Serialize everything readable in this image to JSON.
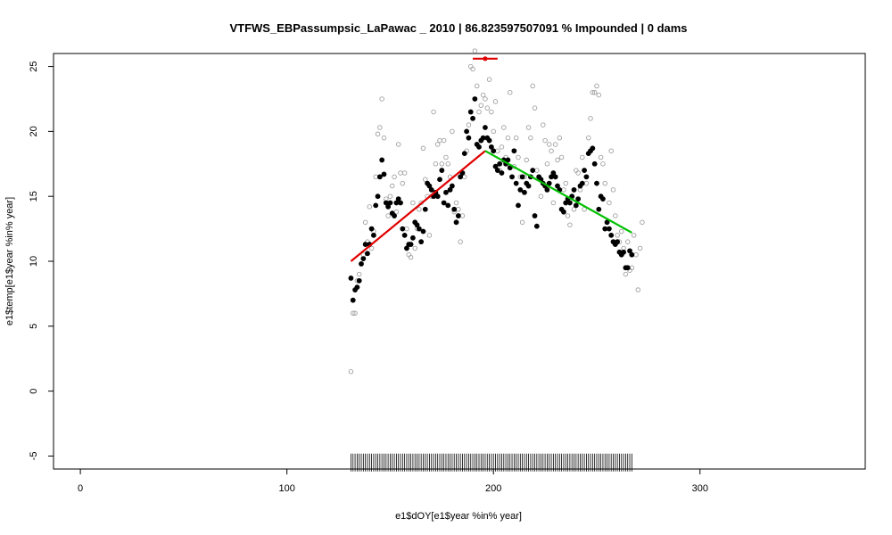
{
  "chart_data": {
    "type": "scatter",
    "title": "VTFWS_EBPassumpsic_LaPawac _ 2010   |   86.823597507091  % Impounded |  0  dams",
    "xlabel": "e1$dOY[e1$year %in% year]",
    "ylabel": "e1$temp[e1$year %in% year]",
    "xlim": [
      -13,
      380
    ],
    "ylim": [
      -6,
      26
    ],
    "xticks": [
      0,
      100,
      200,
      300
    ],
    "yticks": [
      -5,
      0,
      5,
      10,
      15,
      20,
      25
    ],
    "grid": false,
    "series": [
      {
        "style": "open-gray-circles",
        "color": "#a0a0a0",
        "points": [
          [
            131,
            1.5
          ],
          [
            132,
            6.0
          ],
          [
            133,
            6.0
          ],
          [
            134,
            8.5
          ],
          [
            135,
            9.0
          ],
          [
            136,
            9.8
          ],
          [
            137,
            10.5
          ],
          [
            138,
            13.0
          ],
          [
            139,
            11.5
          ],
          [
            140,
            14.2
          ],
          [
            141,
            11.0
          ],
          [
            142,
            12.3
          ],
          [
            143,
            16.5
          ],
          [
            144,
            19.8
          ],
          [
            145,
            20.3
          ],
          [
            146,
            22.5
          ],
          [
            147,
            19.5
          ],
          [
            148,
            14.8
          ],
          [
            149,
            13.5
          ],
          [
            150,
            15.0
          ],
          [
            151,
            15.8
          ],
          [
            152,
            16.5
          ],
          [
            153,
            13.8
          ],
          [
            154,
            19.0
          ],
          [
            155,
            16.8
          ],
          [
            156,
            16.0
          ],
          [
            157,
            16.8
          ],
          [
            158,
            12.5
          ],
          [
            159,
            10.5
          ],
          [
            160,
            10.3
          ],
          [
            161,
            14.5
          ],
          [
            162,
            11.0
          ],
          [
            163,
            12.5
          ],
          [
            164,
            14.0
          ],
          [
            165,
            14.5
          ],
          [
            166,
            18.7
          ],
          [
            167,
            16.3
          ],
          [
            168,
            15.0
          ],
          [
            169,
            12.0
          ],
          [
            170,
            15.0
          ],
          [
            171,
            21.5
          ],
          [
            172,
            17.5
          ],
          [
            173,
            19.0
          ],
          [
            174,
            19.3
          ],
          [
            175,
            17.5
          ],
          [
            176,
            19.3
          ],
          [
            177,
            18.0
          ],
          [
            178,
            17.5
          ],
          [
            179,
            16.5
          ],
          [
            180,
            20.0
          ],
          [
            181,
            13.8
          ],
          [
            182,
            14.5
          ],
          [
            183,
            14.0
          ],
          [
            184,
            11.5
          ],
          [
            185,
            13.5
          ],
          [
            186,
            16.5
          ],
          [
            187,
            18.5
          ],
          [
            188,
            20.5
          ],
          [
            189,
            25.0
          ],
          [
            190,
            24.8
          ],
          [
            191,
            26.2
          ],
          [
            192,
            23.5
          ],
          [
            193,
            21.5
          ],
          [
            194,
            22.0
          ],
          [
            195,
            22.8
          ],
          [
            196,
            22.5
          ],
          [
            197,
            21.8
          ],
          [
            198,
            24.0
          ],
          [
            199,
            21.5
          ],
          [
            200,
            20.0
          ],
          [
            201,
            22.3
          ],
          [
            202,
            18.5
          ],
          [
            203,
            17.0
          ],
          [
            204,
            18.8
          ],
          [
            205,
            20.3
          ],
          [
            206,
            18.0
          ],
          [
            207,
            19.5
          ],
          [
            208,
            23.0
          ],
          [
            209,
            16.5
          ],
          [
            210,
            17.3
          ],
          [
            211,
            19.5
          ],
          [
            212,
            18.0
          ],
          [
            213,
            16.5
          ],
          [
            214,
            13.0
          ],
          [
            215,
            16.5
          ],
          [
            216,
            17.8
          ],
          [
            217,
            20.3
          ],
          [
            218,
            19.5
          ],
          [
            219,
            23.5
          ],
          [
            220,
            21.8
          ],
          [
            221,
            17.0
          ],
          [
            222,
            16.5
          ],
          [
            223,
            15.0
          ],
          [
            224,
            20.5
          ],
          [
            225,
            19.3
          ],
          [
            226,
            17.5
          ],
          [
            227,
            19.0
          ],
          [
            228,
            18.5
          ],
          [
            229,
            14.5
          ],
          [
            230,
            19.0
          ],
          [
            231,
            17.8
          ],
          [
            232,
            19.5
          ],
          [
            233,
            18.0
          ],
          [
            234,
            15.5
          ],
          [
            235,
            16.0
          ],
          [
            236,
            13.5
          ],
          [
            237,
            12.8
          ],
          [
            238,
            15.0
          ],
          [
            239,
            14.0
          ],
          [
            240,
            17.0
          ],
          [
            241,
            16.8
          ],
          [
            242,
            15.5
          ],
          [
            243,
            18.0
          ],
          [
            244,
            14.0
          ],
          [
            245,
            16.0
          ],
          [
            246,
            19.5
          ],
          [
            247,
            21.0
          ],
          [
            248,
            23.0
          ],
          [
            249,
            23.0
          ],
          [
            250,
            23.5
          ],
          [
            251,
            22.8
          ],
          [
            252,
            18.0
          ],
          [
            253,
            17.5
          ],
          [
            254,
            16.0
          ],
          [
            255,
            13.0
          ],
          [
            256,
            14.5
          ],
          [
            257,
            18.5
          ],
          [
            258,
            15.5
          ],
          [
            259,
            13.5
          ],
          [
            260,
            12.0
          ],
          [
            261,
            11.5
          ],
          [
            262,
            12.3
          ],
          [
            263,
            11.0
          ],
          [
            264,
            9.0
          ],
          [
            265,
            11.5
          ],
          [
            266,
            9.3
          ],
          [
            267,
            9.5
          ],
          [
            268,
            12.0
          ],
          [
            269,
            10.5
          ],
          [
            270,
            7.8
          ],
          [
            271,
            11.0
          ],
          [
            272,
            13.0
          ]
        ]
      },
      {
        "style": "filled-black-circles",
        "color": "#000000",
        "points": [
          [
            131,
            8.7
          ],
          [
            132,
            7.0
          ],
          [
            133,
            7.8
          ],
          [
            134,
            8.0
          ],
          [
            135,
            8.5
          ],
          [
            136,
            9.8
          ],
          [
            137,
            10.2
          ],
          [
            138,
            11.3
          ],
          [
            139,
            10.6
          ],
          [
            140,
            11.3
          ],
          [
            141,
            12.5
          ],
          [
            142,
            12.0
          ],
          [
            143,
            14.3
          ],
          [
            144,
            15.0
          ],
          [
            145,
            16.5
          ],
          [
            146,
            17.8
          ],
          [
            147,
            16.7
          ],
          [
            148,
            14.5
          ],
          [
            149,
            14.2
          ],
          [
            150,
            14.5
          ],
          [
            151,
            13.7
          ],
          [
            152,
            13.5
          ],
          [
            153,
            14.5
          ],
          [
            154,
            14.8
          ],
          [
            155,
            14.5
          ],
          [
            156,
            12.5
          ],
          [
            157,
            12.0
          ],
          [
            158,
            11.0
          ],
          [
            159,
            11.3
          ],
          [
            160,
            11.3
          ],
          [
            161,
            11.8
          ],
          [
            162,
            13.0
          ],
          [
            163,
            12.8
          ],
          [
            164,
            12.5
          ],
          [
            165,
            11.5
          ],
          [
            166,
            12.3
          ],
          [
            167,
            14.0
          ],
          [
            168,
            16.0
          ],
          [
            169,
            15.8
          ],
          [
            170,
            15.5
          ],
          [
            171,
            15.0
          ],
          [
            172,
            15.3
          ],
          [
            173,
            15.0
          ],
          [
            174,
            16.3
          ],
          [
            175,
            17.0
          ],
          [
            176,
            14.5
          ],
          [
            177,
            15.3
          ],
          [
            178,
            14.3
          ],
          [
            179,
            15.5
          ],
          [
            180,
            15.8
          ],
          [
            181,
            14.0
          ],
          [
            182,
            13.0
          ],
          [
            183,
            13.5
          ],
          [
            184,
            16.5
          ],
          [
            185,
            16.8
          ],
          [
            186,
            18.3
          ],
          [
            187,
            20.0
          ],
          [
            188,
            19.5
          ],
          [
            189,
            21.5
          ],
          [
            190,
            21.0
          ],
          [
            191,
            22.5
          ],
          [
            192,
            19.0
          ],
          [
            193,
            18.8
          ],
          [
            194,
            19.3
          ],
          [
            195,
            19.5
          ],
          [
            196,
            20.3
          ],
          [
            197,
            19.5
          ],
          [
            198,
            19.3
          ],
          [
            199,
            18.8
          ],
          [
            200,
            18.5
          ],
          [
            201,
            17.3
          ],
          [
            202,
            17.0
          ],
          [
            203,
            17.5
          ],
          [
            204,
            16.8
          ],
          [
            205,
            17.8
          ],
          [
            206,
            17.5
          ],
          [
            207,
            17.8
          ],
          [
            208,
            17.2
          ],
          [
            209,
            16.5
          ],
          [
            210,
            18.5
          ],
          [
            211,
            16.0
          ],
          [
            212,
            14.3
          ],
          [
            213,
            15.5
          ],
          [
            214,
            16.5
          ],
          [
            215,
            15.3
          ],
          [
            216,
            16.0
          ],
          [
            217,
            15.8
          ],
          [
            218,
            16.5
          ],
          [
            219,
            17.0
          ],
          [
            220,
            13.5
          ],
          [
            221,
            12.7
          ],
          [
            222,
            16.5
          ],
          [
            223,
            16.3
          ],
          [
            224,
            16.0
          ],
          [
            225,
            15.8
          ],
          [
            226,
            15.5
          ],
          [
            227,
            16.0
          ],
          [
            228,
            16.5
          ],
          [
            229,
            16.8
          ],
          [
            230,
            16.5
          ],
          [
            231,
            15.8
          ],
          [
            232,
            15.5
          ],
          [
            233,
            14.0
          ],
          [
            234,
            13.8
          ],
          [
            235,
            14.5
          ],
          [
            236,
            14.8
          ],
          [
            237,
            14.5
          ],
          [
            238,
            15.0
          ],
          [
            239,
            15.5
          ],
          [
            240,
            14.3
          ],
          [
            241,
            14.8
          ],
          [
            242,
            15.8
          ],
          [
            243,
            16.0
          ],
          [
            244,
            17.0
          ],
          [
            245,
            16.5
          ],
          [
            246,
            18.3
          ],
          [
            247,
            18.5
          ],
          [
            248,
            18.7
          ],
          [
            249,
            17.5
          ],
          [
            250,
            16.0
          ],
          [
            251,
            14.0
          ],
          [
            252,
            15.0
          ],
          [
            253,
            14.8
          ],
          [
            254,
            12.5
          ],
          [
            255,
            13.0
          ],
          [
            256,
            12.5
          ],
          [
            257,
            12.0
          ],
          [
            258,
            11.5
          ],
          [
            259,
            11.3
          ],
          [
            260,
            11.5
          ],
          [
            261,
            10.7
          ],
          [
            262,
            10.5
          ],
          [
            263,
            10.7
          ],
          [
            264,
            9.5
          ],
          [
            265,
            9.5
          ],
          [
            266,
            10.8
          ],
          [
            267,
            10.5
          ]
        ]
      }
    ],
    "rug_x_range": [
      131,
      267
    ],
    "rug_y": -5.5,
    "fit_segments": [
      {
        "color": "#e00000",
        "x": [
          131,
          196
        ],
        "y": [
          10.0,
          18.5
        ]
      },
      {
        "color": "#00c000",
        "x": [
          196,
          267
        ],
        "y": [
          18.5,
          12.2
        ]
      },
      {
        "color": "#e00000",
        "x": [
          190,
          202
        ],
        "y": [
          25.6,
          25.6
        ],
        "marker_x": 196
      }
    ]
  }
}
